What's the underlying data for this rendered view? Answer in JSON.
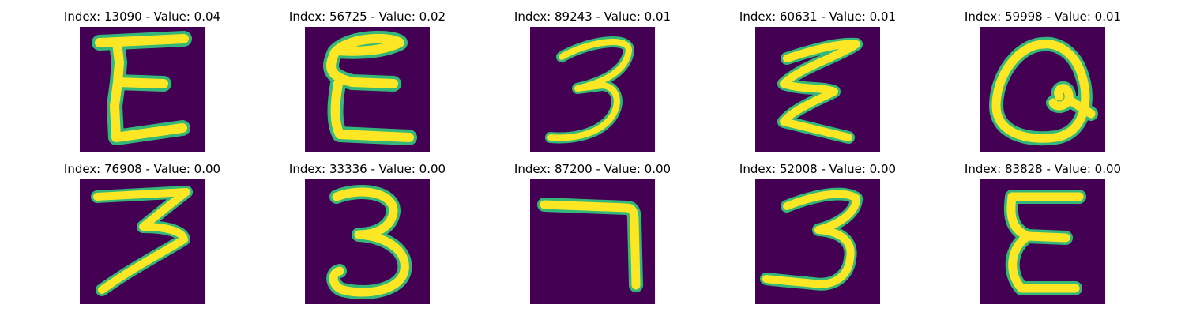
{
  "figure": {
    "panels": [
      {
        "index": "13090",
        "value": "0.04",
        "title": "Index: 13090 - Value: 0.04",
        "glyph": "E"
      },
      {
        "index": "56725",
        "value": "0.02",
        "title": "Index: 56725 - Value: 0.02",
        "glyph": "E"
      },
      {
        "index": "89243",
        "value": "0.01",
        "title": "Index: 89243 - Value: 0.01",
        "glyph": "3"
      },
      {
        "index": "60631",
        "value": "0.01",
        "title": "Index: 60631 - Value: 0.01",
        "glyph": "Z"
      },
      {
        "index": "59998",
        "value": "0.01",
        "title": "Index: 59998 - Value: 0.01",
        "glyph": "Q"
      },
      {
        "index": "76908",
        "value": "0.00",
        "title": "Index: 76908 - Value: 0.00",
        "glyph": "3"
      },
      {
        "index": "33336",
        "value": "0.00",
        "title": "Index: 33336 - Value: 0.00",
        "glyph": "3"
      },
      {
        "index": "87200",
        "value": "0.00",
        "title": "Index: 87200 - Value: 0.00",
        "glyph": "7"
      },
      {
        "index": "52008",
        "value": "0.00",
        "title": "Index: 52008 - Value: 0.00",
        "glyph": "3"
      },
      {
        "index": "83828",
        "value": "0.00",
        "title": "Index: 83828 - Value: 0.00",
        "glyph": "E"
      }
    ],
    "colors": {
      "background": "#440154",
      "stroke": "#fde725",
      "edge": "#35b779"
    }
  }
}
